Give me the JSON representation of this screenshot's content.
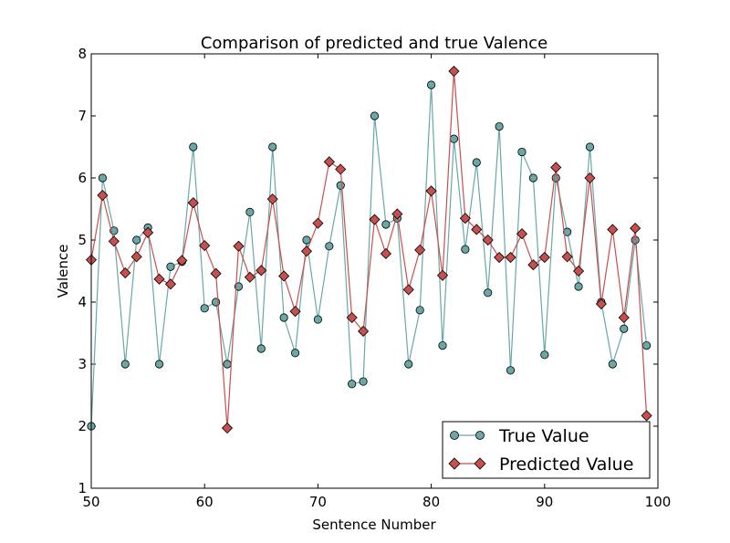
{
  "chart_data": {
    "type": "line",
    "title": "Comparison of predicted and true Valence",
    "xlabel": "Sentence Number",
    "ylabel": "Valence",
    "xlim": [
      50,
      100
    ],
    "ylim": [
      1,
      8
    ],
    "xticks": [
      50,
      60,
      70,
      80,
      90,
      100
    ],
    "yticks": [
      1,
      2,
      3,
      4,
      5,
      6,
      7,
      8
    ],
    "grid": false,
    "legend_position": "bottom-right",
    "x": [
      50,
      51,
      52,
      53,
      54,
      55,
      56,
      57,
      58,
      59,
      60,
      61,
      62,
      63,
      64,
      65,
      66,
      67,
      68,
      69,
      70,
      71,
      72,
      73,
      74,
      75,
      76,
      77,
      78,
      79,
      80,
      81,
      82,
      83,
      84,
      85,
      86,
      87,
      88,
      89,
      90,
      91,
      92,
      93,
      94,
      95,
      96,
      97,
      98,
      99
    ],
    "series": [
      {
        "name": "True Value",
        "marker": "circle",
        "color": "#6aa7a7",
        "line_color": "#6aa7a7",
        "values": [
          2.0,
          6.0,
          5.15,
          3.0,
          5.0,
          5.2,
          3.0,
          4.57,
          4.65,
          6.5,
          3.9,
          4.0,
          3.0,
          4.25,
          5.45,
          3.25,
          6.5,
          3.75,
          3.18,
          5.0,
          3.72,
          4.9,
          5.88,
          2.68,
          2.72,
          7.0,
          5.25,
          5.35,
          3.0,
          3.87,
          7.5,
          3.3,
          6.63,
          4.85,
          6.25,
          4.15,
          6.83,
          2.9,
          6.42,
          6.0,
          3.15,
          6.0,
          5.13,
          4.25,
          6.5,
          4.0,
          3.0,
          3.57,
          5.0,
          3.3
        ]
      },
      {
        "name": "Predicted Value",
        "marker": "diamond",
        "color": "#c94f4f",
        "line_color": "#c94f4f",
        "values": [
          4.68,
          5.72,
          4.98,
          4.47,
          4.73,
          5.12,
          4.37,
          4.29,
          4.67,
          5.6,
          4.91,
          4.46,
          1.97,
          4.9,
          4.4,
          4.51,
          5.66,
          4.42,
          3.85,
          4.82,
          5.27,
          6.26,
          6.14,
          3.75,
          3.53,
          5.33,
          4.78,
          5.42,
          4.2,
          4.84,
          5.79,
          4.43,
          7.72,
          5.35,
          5.17,
          5.0,
          4.72,
          4.72,
          5.1,
          4.6,
          4.72,
          6.17,
          4.73,
          4.5,
          6.0,
          3.97,
          5.17,
          3.75,
          5.19,
          2.17
        ]
      }
    ]
  }
}
